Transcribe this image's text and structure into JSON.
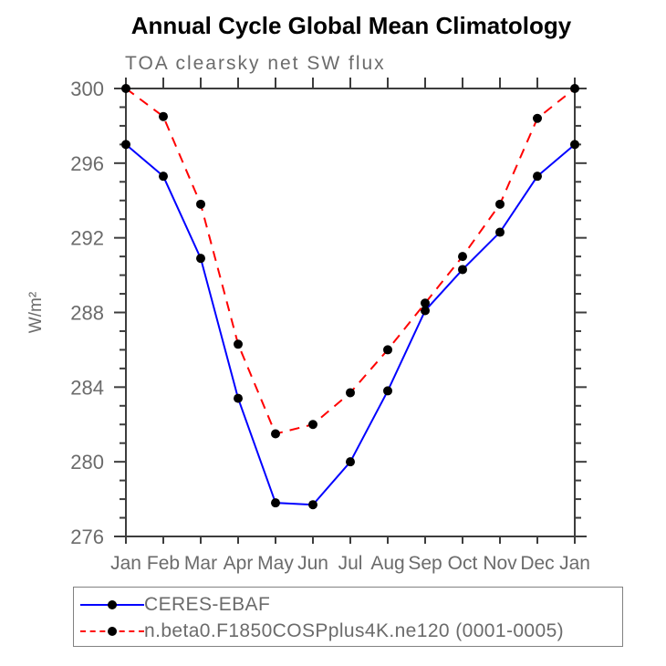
{
  "chart_data": {
    "type": "line",
    "title": "Annual Cycle Global Mean Climatology",
    "subtitle": "TOA clearsky net SW flux",
    "ylabel": "W/m²",
    "xlabel": "",
    "categories": [
      "Jan",
      "Feb",
      "Mar",
      "Apr",
      "May",
      "Jun",
      "Jul",
      "Aug",
      "Sep",
      "Oct",
      "Nov",
      "Dec",
      "Jan"
    ],
    "ylim": [
      276,
      300
    ],
    "ytick_major_step": 4,
    "ytick_minor_step": 1,
    "ytick_major_labels": [
      "276",
      "280",
      "284",
      "288",
      "292",
      "296",
      "300"
    ],
    "grid": false,
    "legend_position": "bottom-left-boxed",
    "series": [
      {
        "name": "CERES-EBAF",
        "line_style": "solid",
        "color": "#0000ff",
        "marker": "filled-circle",
        "marker_color": "#000000",
        "values": [
          297.0,
          295.3,
          290.9,
          283.4,
          277.8,
          277.7,
          280.0,
          283.8,
          288.1,
          290.3,
          292.3,
          295.3,
          297.0
        ]
      },
      {
        "name": "n.beta0.F1850COSPplus4K.ne120 (0001-0005)",
        "line_style": "dashed",
        "color": "#ff0000",
        "marker": "filled-circle",
        "marker_color": "#000000",
        "values": [
          300.0,
          298.5,
          293.8,
          286.3,
          281.5,
          282.0,
          283.7,
          286.0,
          288.5,
          291.0,
          293.8,
          298.4,
          300.0
        ]
      }
    ]
  },
  "colors": {
    "axis": "#3d3d3d",
    "tick_label": "#6b6b6b",
    "title_text": "#000000",
    "subtitle_text": "#6b6b6b",
    "legend_border": "#818181",
    "series_blue": "#0000ff",
    "series_red": "#ff0000",
    "marker_black": "#000000"
  }
}
